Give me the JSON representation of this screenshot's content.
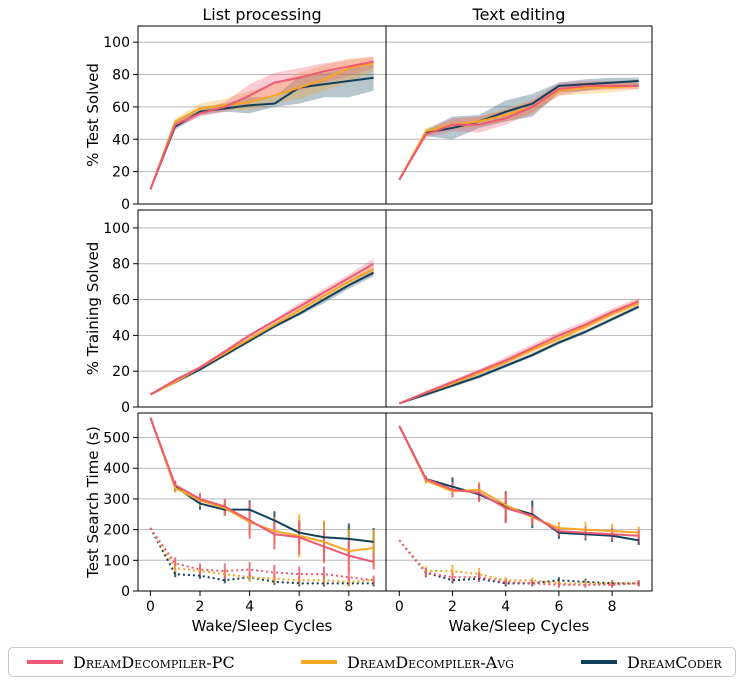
{
  "colors": {
    "pc": "#ee5a72",
    "avg": "#f5a623",
    "dc": "#12405a",
    "grid": "#b8b8b8",
    "axis": "#000000"
  },
  "legend": {
    "items": [
      {
        "key": "pc",
        "label": "DreamDecompiler-PC"
      },
      {
        "key": "avg",
        "label": "DreamDecompiler-Avg"
      },
      {
        "key": "dc",
        "label": "DreamCoder"
      }
    ]
  },
  "chart_data": [
    {
      "type": "line",
      "title": "List processing",
      "ylabel": "% Test Solved",
      "xlabel": "",
      "ylim": [
        0,
        110
      ],
      "yticks": [
        0,
        20,
        40,
        60,
        80,
        100
      ],
      "xlim": [
        -0.5,
        9.5
      ],
      "grid": true,
      "bands": true,
      "x": [
        0,
        1,
        2,
        3,
        4,
        5,
        6,
        7,
        8,
        9
      ],
      "series": [
        {
          "key": "dc",
          "values": [
            9,
            48,
            57,
            59,
            61,
            62,
            72,
            74,
            76,
            78
          ],
          "lower": [
            9,
            46,
            55,
            57,
            56,
            60,
            62,
            66,
            66,
            70
          ],
          "upper": [
            9,
            50,
            60,
            62,
            66,
            66,
            79,
            81,
            84,
            86
          ]
        },
        {
          "key": "avg",
          "values": [
            9,
            51,
            59,
            61,
            63,
            67,
            72,
            77,
            84,
            87
          ],
          "lower": [
            9,
            49,
            56,
            58,
            58,
            62,
            65,
            70,
            75,
            82
          ],
          "upper": [
            9,
            53,
            62,
            65,
            70,
            74,
            81,
            86,
            90,
            91
          ]
        },
        {
          "key": "pc",
          "values": [
            9,
            49,
            56,
            60,
            67,
            75,
            78,
            82,
            85,
            88
          ],
          "lower": [
            9,
            47,
            54,
            57,
            62,
            67,
            70,
            75,
            79,
            84
          ],
          "upper": [
            9,
            51,
            58,
            63,
            74,
            81,
            84,
            87,
            89,
            91
          ]
        }
      ]
    },
    {
      "type": "line",
      "title": "Text editing",
      "ylabel": "",
      "xlabel": "",
      "ylim": [
        0,
        110
      ],
      "yticks": [
        0,
        20,
        40,
        60,
        80,
        100
      ],
      "xlim": [
        -0.5,
        9.5
      ],
      "grid": true,
      "bands": true,
      "x": [
        0,
        1,
        2,
        3,
        4,
        5,
        6,
        7,
        8,
        9
      ],
      "series": [
        {
          "key": "dc",
          "values": [
            15,
            44,
            47,
            51,
            57,
            62,
            73,
            74,
            75,
            76
          ],
          "lower": [
            15,
            42,
            40,
            47,
            51,
            54,
            69,
            70,
            72,
            73
          ],
          "upper": [
            15,
            46,
            54,
            55,
            64,
            68,
            75,
            77,
            78,
            78
          ]
        },
        {
          "key": "avg",
          "values": [
            15,
            45,
            49,
            51,
            55,
            60,
            70,
            72,
            72,
            73
          ],
          "lower": [
            15,
            43,
            46,
            48,
            51,
            56,
            67,
            68,
            69,
            71
          ],
          "upper": [
            15,
            47,
            52,
            54,
            59,
            64,
            73,
            75,
            75,
            75
          ]
        },
        {
          "key": "pc",
          "values": [
            15,
            43,
            49,
            49,
            53,
            60,
            71,
            73,
            73,
            73
          ],
          "lower": [
            15,
            41,
            45,
            44,
            49,
            56,
            67,
            70,
            71,
            71
          ],
          "upper": [
            15,
            45,
            53,
            54,
            58,
            64,
            75,
            76,
            76,
            75
          ]
        }
      ]
    },
    {
      "type": "line",
      "title": "",
      "ylabel": "% Training Solved",
      "xlabel": "",
      "ylim": [
        0,
        110
      ],
      "yticks": [
        0,
        20,
        40,
        60,
        80,
        100
      ],
      "xlim": [
        -0.5,
        9.5
      ],
      "grid": true,
      "bands": true,
      "x": [
        0,
        1,
        2,
        3,
        4,
        5,
        6,
        7,
        8,
        9
      ],
      "series": [
        {
          "key": "dc",
          "values": [
            7,
            14,
            21,
            29,
            37,
            45,
            52,
            60,
            68,
            75
          ],
          "lower": [
            7,
            13,
            20,
            28,
            36,
            44,
            51,
            58,
            66,
            73
          ],
          "upper": [
            7,
            15,
            22,
            30,
            38,
            46,
            53,
            61,
            69,
            77
          ]
        },
        {
          "key": "avg",
          "values": [
            7,
            14,
            22,
            30,
            38,
            46,
            54,
            62,
            70,
            77
          ],
          "lower": [
            7,
            13,
            21,
            29,
            37,
            45,
            52,
            60,
            68,
            75
          ],
          "upper": [
            7,
            15,
            23,
            31,
            39,
            47,
            55,
            63,
            71,
            79
          ]
        },
        {
          "key": "pc",
          "values": [
            7,
            15,
            22,
            31,
            40,
            48,
            56,
            64,
            72,
            80
          ],
          "lower": [
            7,
            14,
            21,
            29,
            38,
            46,
            54,
            62,
            70,
            77
          ],
          "upper": [
            7,
            16,
            23,
            32,
            41,
            49,
            58,
            66,
            74,
            83
          ]
        }
      ]
    },
    {
      "type": "line",
      "title": "",
      "ylabel": "",
      "xlabel": "",
      "ylim": [
        0,
        110
      ],
      "yticks": [
        0,
        20,
        40,
        60,
        80,
        100
      ],
      "xlim": [
        -0.5,
        9.5
      ],
      "grid": true,
      "bands": true,
      "x": [
        0,
        1,
        2,
        3,
        4,
        5,
        6,
        7,
        8,
        9
      ],
      "series": [
        {
          "key": "dc",
          "values": [
            2,
            7,
            12,
            17,
            23,
            29,
            36,
            42,
            49,
            56
          ],
          "lower": [
            2,
            6,
            11,
            16,
            22,
            28,
            35,
            41,
            48,
            55
          ],
          "upper": [
            2,
            8,
            13,
            18,
            24,
            30,
            37,
            43,
            50,
            57
          ]
        },
        {
          "key": "avg",
          "values": [
            2,
            8,
            13,
            19,
            25,
            32,
            38,
            45,
            52,
            58
          ],
          "lower": [
            2,
            7,
            12,
            18,
            24,
            30,
            36,
            43,
            50,
            56
          ],
          "upper": [
            2,
            9,
            14,
            20,
            26,
            33,
            40,
            47,
            54,
            60
          ]
        },
        {
          "key": "pc",
          "values": [
            2,
            8,
            14,
            20,
            26,
            33,
            40,
            46,
            53,
            59
          ],
          "lower": [
            2,
            7,
            13,
            18,
            24,
            31,
            38,
            44,
            51,
            57
          ],
          "upper": [
            2,
            9,
            15,
            21,
            28,
            35,
            42,
            48,
            55,
            61
          ]
        }
      ]
    },
    {
      "type": "line",
      "title": "",
      "ylabel": "Test Search Time (s)",
      "xlabel": "Wake/Sleep Cycles",
      "ylim": [
        0,
        580
      ],
      "yticks": [
        0,
        100,
        200,
        300,
        400,
        500
      ],
      "xlim": [
        -0.5,
        9.5
      ],
      "xticks": [
        0,
        2,
        4,
        6,
        8
      ],
      "grid": true,
      "errorbars": true,
      "x": [
        0,
        1,
        2,
        3,
        4,
        5,
        6,
        7,
        8,
        9
      ],
      "series": [
        {
          "key": "dc",
          "style": "solid",
          "values": [
            565,
            340,
            285,
            265,
            265,
            230,
            190,
            175,
            170,
            160
          ],
          "err": [
            0,
            15,
            20,
            20,
            30,
            30,
            40,
            50,
            50,
            45
          ]
        },
        {
          "key": "avg",
          "style": "solid",
          "values": [
            565,
            335,
            295,
            270,
            225,
            195,
            180,
            160,
            130,
            140
          ],
          "err": [
            0,
            15,
            20,
            25,
            40,
            45,
            70,
            70,
            70,
            60
          ]
        },
        {
          "key": "pc",
          "style": "solid",
          "values": [
            565,
            345,
            300,
            275,
            230,
            185,
            175,
            145,
            115,
            95
          ],
          "err": [
            0,
            15,
            20,
            25,
            60,
            50,
            55,
            50,
            50,
            25
          ]
        },
        {
          "key": "dc",
          "style": "dotted",
          "values": [
            205,
            55,
            50,
            35,
            45,
            30,
            25,
            25,
            25,
            25
          ],
          "err": [
            0,
            10,
            10,
            10,
            10,
            10,
            10,
            10,
            10,
            10
          ]
        },
        {
          "key": "avg",
          "style": "dotted",
          "values": [
            205,
            75,
            65,
            55,
            45,
            40,
            35,
            35,
            30,
            35
          ],
          "err": [
            0,
            15,
            15,
            15,
            15,
            15,
            15,
            15,
            15,
            15
          ]
        },
        {
          "key": "pc",
          "style": "dotted",
          "values": [
            205,
            90,
            70,
            65,
            70,
            60,
            55,
            55,
            45,
            35
          ],
          "err": [
            0,
            20,
            20,
            25,
            25,
            25,
            25,
            25,
            20,
            15
          ]
        }
      ]
    },
    {
      "type": "line",
      "title": "",
      "ylabel": "",
      "xlabel": "Wake/Sleep Cycles",
      "ylim": [
        0,
        580
      ],
      "yticks": [
        0,
        100,
        200,
        300,
        400,
        500
      ],
      "xlim": [
        -0.5,
        9.5
      ],
      "xticks": [
        0,
        2,
        4,
        6,
        8
      ],
      "grid": true,
      "errorbars": true,
      "x": [
        0,
        1,
        2,
        3,
        4,
        5,
        6,
        7,
        8,
        9
      ],
      "series": [
        {
          "key": "dc",
          "style": "solid",
          "values": [
            538,
            365,
            340,
            315,
            275,
            250,
            190,
            185,
            180,
            165
          ],
          "err": [
            0,
            10,
            30,
            20,
            50,
            45,
            20,
            20,
            20,
            15
          ]
        },
        {
          "key": "avg",
          "style": "solid",
          "values": [
            538,
            360,
            325,
            330,
            280,
            240,
            205,
            200,
            195,
            190
          ],
          "err": [
            0,
            10,
            20,
            25,
            40,
            25,
            20,
            25,
            25,
            20
          ]
        },
        {
          "key": "pc",
          "style": "solid",
          "values": [
            538,
            365,
            330,
            320,
            270,
            245,
            195,
            190,
            185,
            180
          ],
          "err": [
            0,
            10,
            25,
            30,
            50,
            30,
            15,
            20,
            20,
            20
          ]
        },
        {
          "key": "dc",
          "style": "dotted",
          "values": [
            165,
            60,
            35,
            40,
            25,
            25,
            35,
            30,
            25,
            25
          ],
          "err": [
            0,
            15,
            10,
            10,
            10,
            10,
            10,
            10,
            10,
            10
          ]
        },
        {
          "key": "avg",
          "style": "dotted",
          "values": [
            165,
            65,
            65,
            55,
            35,
            35,
            25,
            25,
            25,
            25
          ],
          "err": [
            0,
            15,
            20,
            20,
            10,
            10,
            10,
            10,
            10,
            10
          ]
        },
        {
          "key": "pc",
          "style": "dotted",
          "values": [
            165,
            60,
            45,
            45,
            30,
            25,
            20,
            20,
            20,
            25
          ],
          "err": [
            0,
            15,
            15,
            15,
            10,
            10,
            10,
            10,
            10,
            10
          ]
        }
      ]
    }
  ]
}
